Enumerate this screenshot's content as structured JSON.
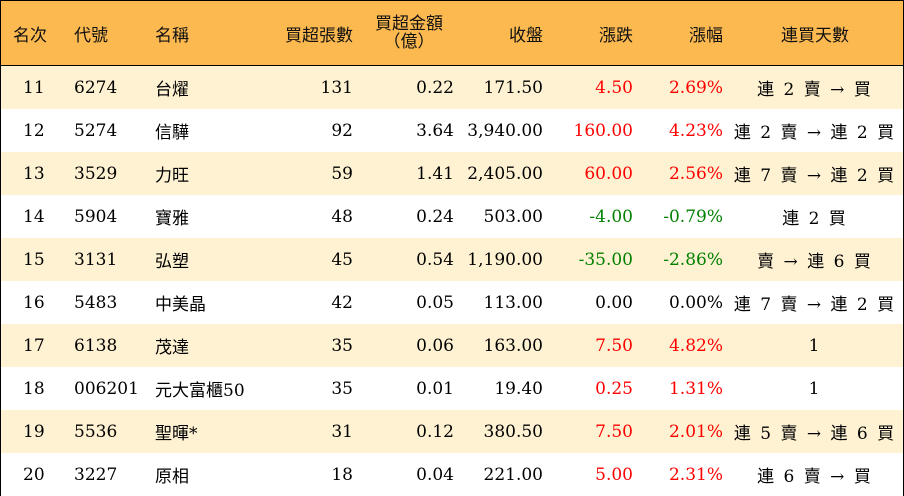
{
  "header": {
    "rank": "名次",
    "code": "代號",
    "name": "名稱",
    "lots": "買超張數",
    "amount_line1": "買超金額",
    "amount_line2": "（億）",
    "close": "收盤",
    "change": "漲跌",
    "pct": "漲幅",
    "streak": "連買天數"
  },
  "colors": {
    "header_bg": "#fbb950",
    "odd_row_bg": "#fef2d2",
    "up": "#ff0000",
    "down": "#008000",
    "flat": "#000000"
  },
  "rows": [
    {
      "rank": "11",
      "code": "6274",
      "name": "台燿",
      "lots": "131",
      "amount": "0.22",
      "close": "171.50",
      "change": "4.50",
      "pct": "2.69%",
      "trend": "up",
      "streak": "連 2 賣 → 買"
    },
    {
      "rank": "12",
      "code": "5274",
      "name": "信驊",
      "lots": "92",
      "amount": "3.64",
      "close": "3,940.00",
      "change": "160.00",
      "pct": "4.23%",
      "trend": "up",
      "streak": "連 2 賣 → 連 2 買"
    },
    {
      "rank": "13",
      "code": "3529",
      "name": "力旺",
      "lots": "59",
      "amount": "1.41",
      "close": "2,405.00",
      "change": "60.00",
      "pct": "2.56%",
      "trend": "up",
      "streak": "連 7 賣 → 連 2 買"
    },
    {
      "rank": "14",
      "code": "5904",
      "name": "寶雅",
      "lots": "48",
      "amount": "0.24",
      "close": "503.00",
      "change": "-4.00",
      "pct": "-0.79%",
      "trend": "down",
      "streak": "連 2 買"
    },
    {
      "rank": "15",
      "code": "3131",
      "name": "弘塑",
      "lots": "45",
      "amount": "0.54",
      "close": "1,190.00",
      "change": "-35.00",
      "pct": "-2.86%",
      "trend": "down",
      "streak": "賣 → 連 6 買"
    },
    {
      "rank": "16",
      "code": "5483",
      "name": "中美晶",
      "lots": "42",
      "amount": "0.05",
      "close": "113.00",
      "change": "0.00",
      "pct": "0.00%",
      "trend": "flat",
      "streak": "連 7 賣 → 連 2 買"
    },
    {
      "rank": "17",
      "code": "6138",
      "name": "茂達",
      "lots": "35",
      "amount": "0.06",
      "close": "163.00",
      "change": "7.50",
      "pct": "4.82%",
      "trend": "up",
      "streak": "1"
    },
    {
      "rank": "18",
      "code": "006201",
      "name": "元大富櫃50",
      "lots": "35",
      "amount": "0.01",
      "close": "19.40",
      "change": "0.25",
      "pct": "1.31%",
      "trend": "up",
      "streak": "1"
    },
    {
      "rank": "19",
      "code": "5536",
      "name": "聖暉*",
      "lots": "31",
      "amount": "0.12",
      "close": "380.50",
      "change": "7.50",
      "pct": "2.01%",
      "trend": "up",
      "streak": "連 5 賣 → 連 6 買"
    },
    {
      "rank": "20",
      "code": "3227",
      "name": "原相",
      "lots": "18",
      "amount": "0.04",
      "close": "221.00",
      "change": "5.00",
      "pct": "2.31%",
      "trend": "up",
      "streak": "連 6 賣 → 買"
    }
  ]
}
